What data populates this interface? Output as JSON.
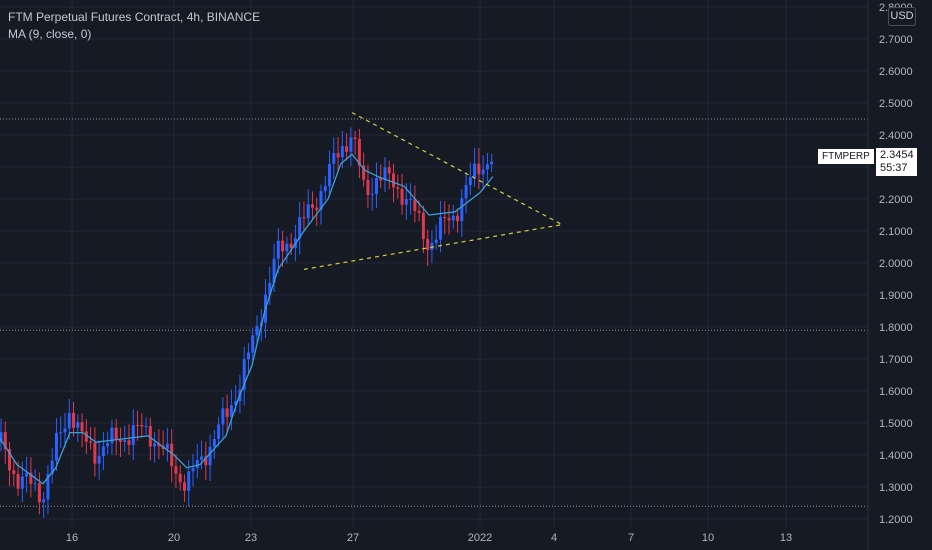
{
  "legend": {
    "title": "FTM Perpetual Futures Contract, 4h, BINANCE",
    "indicator": "MA (9, close, 0)"
  },
  "price_axis": {
    "currency": "USD",
    "symbol": "FTMPERP",
    "last_price": "2.3454",
    "countdown": "55:37"
  },
  "colors": {
    "background": "#161a25",
    "up_candle": "#2962ff",
    "down_candle": "#e0394b",
    "ma_line": "#3aa0d8",
    "trendline": "#d4cf39",
    "grid": "#232734"
  },
  "chart_data": {
    "type": "candlestick",
    "title": "FTM Perpetual Futures Contract, 4h, BINANCE",
    "timeframe": "4h",
    "xlabel": "",
    "ylabel": "",
    "x_ticks": [
      "16",
      "20",
      "23",
      "27",
      "2022",
      "4",
      "7",
      "10",
      "13"
    ],
    "y_ticks": [
      "2.7000",
      "2.6000",
      "2.5000",
      "2.4000",
      "2.3000",
      "2.2000",
      "2.1000",
      "2.0000",
      "1.9000",
      "1.8000",
      "1.7000",
      "1.6000",
      "1.5000",
      "1.4000",
      "1.3000",
      "1.2000"
    ],
    "y_ticks_partial": [
      "2.8000"
    ],
    "ylim": [
      1.2,
      2.8
    ],
    "x_dates_visible": [
      "Dec 13",
      "Jan 15"
    ],
    "grid": true,
    "series": [
      {
        "name": "FTMPERP",
        "kind": "close_trace_approx",
        "x": [
          "Dec 13",
          "Dec 14",
          "Dec 15",
          "Dec 15 12h",
          "Dec 16",
          "Dec 16 12h",
          "Dec 17",
          "Dec 18",
          "Dec 19",
          "Dec 20",
          "Dec 20 12h",
          "Dec 21",
          "Dec 22",
          "Dec 22 12h",
          "Dec 23",
          "Dec 23 12h",
          "Dec 24",
          "Dec 25",
          "Dec 26",
          "Dec 26 12h",
          "Dec 27",
          "Dec 27 12h",
          "Dec 28",
          "Dec 29",
          "Dec 30",
          "Dec 31",
          "Jan 1",
          "Jan 1 12h"
        ],
        "values": [
          1.49,
          1.33,
          1.28,
          1.42,
          1.55,
          1.44,
          1.41,
          1.46,
          1.48,
          1.36,
          1.31,
          1.38,
          1.52,
          1.62,
          1.74,
          1.9,
          2.03,
          2.13,
          2.27,
          2.36,
          2.41,
          2.21,
          2.28,
          2.22,
          2.06,
          2.16,
          2.31,
          2.33
        ]
      },
      {
        "name": "MA (9, close, 0)",
        "kind": "moving_average_approx",
        "x": [
          "Dec 13",
          "Dec 14",
          "Dec 15",
          "Dec 15 12h",
          "Dec 16",
          "Dec 16 12h",
          "Dec 17",
          "Dec 18",
          "Dec 19",
          "Dec 20",
          "Dec 20 12h",
          "Dec 21",
          "Dec 22",
          "Dec 22 12h",
          "Dec 23",
          "Dec 23 12h",
          "Dec 24",
          "Dec 25",
          "Dec 26",
          "Dec 26 12h",
          "Dec 27",
          "Dec 27 12h",
          "Dec 28",
          "Dec 29",
          "Dec 30",
          "Dec 31",
          "Jan 1",
          "Jan 1 12h"
        ],
        "values": [
          1.49,
          1.37,
          1.31,
          1.36,
          1.47,
          1.47,
          1.44,
          1.45,
          1.46,
          1.4,
          1.36,
          1.37,
          1.46,
          1.58,
          1.68,
          1.85,
          1.98,
          2.1,
          2.2,
          2.31,
          2.34,
          2.29,
          2.27,
          2.24,
          2.15,
          2.16,
          2.22,
          2.27
        ]
      }
    ],
    "horizontal_lines": [
      2.45,
      1.79,
      1.24
    ],
    "trendlines": [
      {
        "from": {
          "x": "Dec 27",
          "y": 2.47
        },
        "to": {
          "x": "Jan 4",
          "y": 2.12
        }
      },
      {
        "from": {
          "x": "Dec 25",
          "y": 1.98
        },
        "to": {
          "x": "Jan 4",
          "y": 2.12
        }
      }
    ]
  }
}
